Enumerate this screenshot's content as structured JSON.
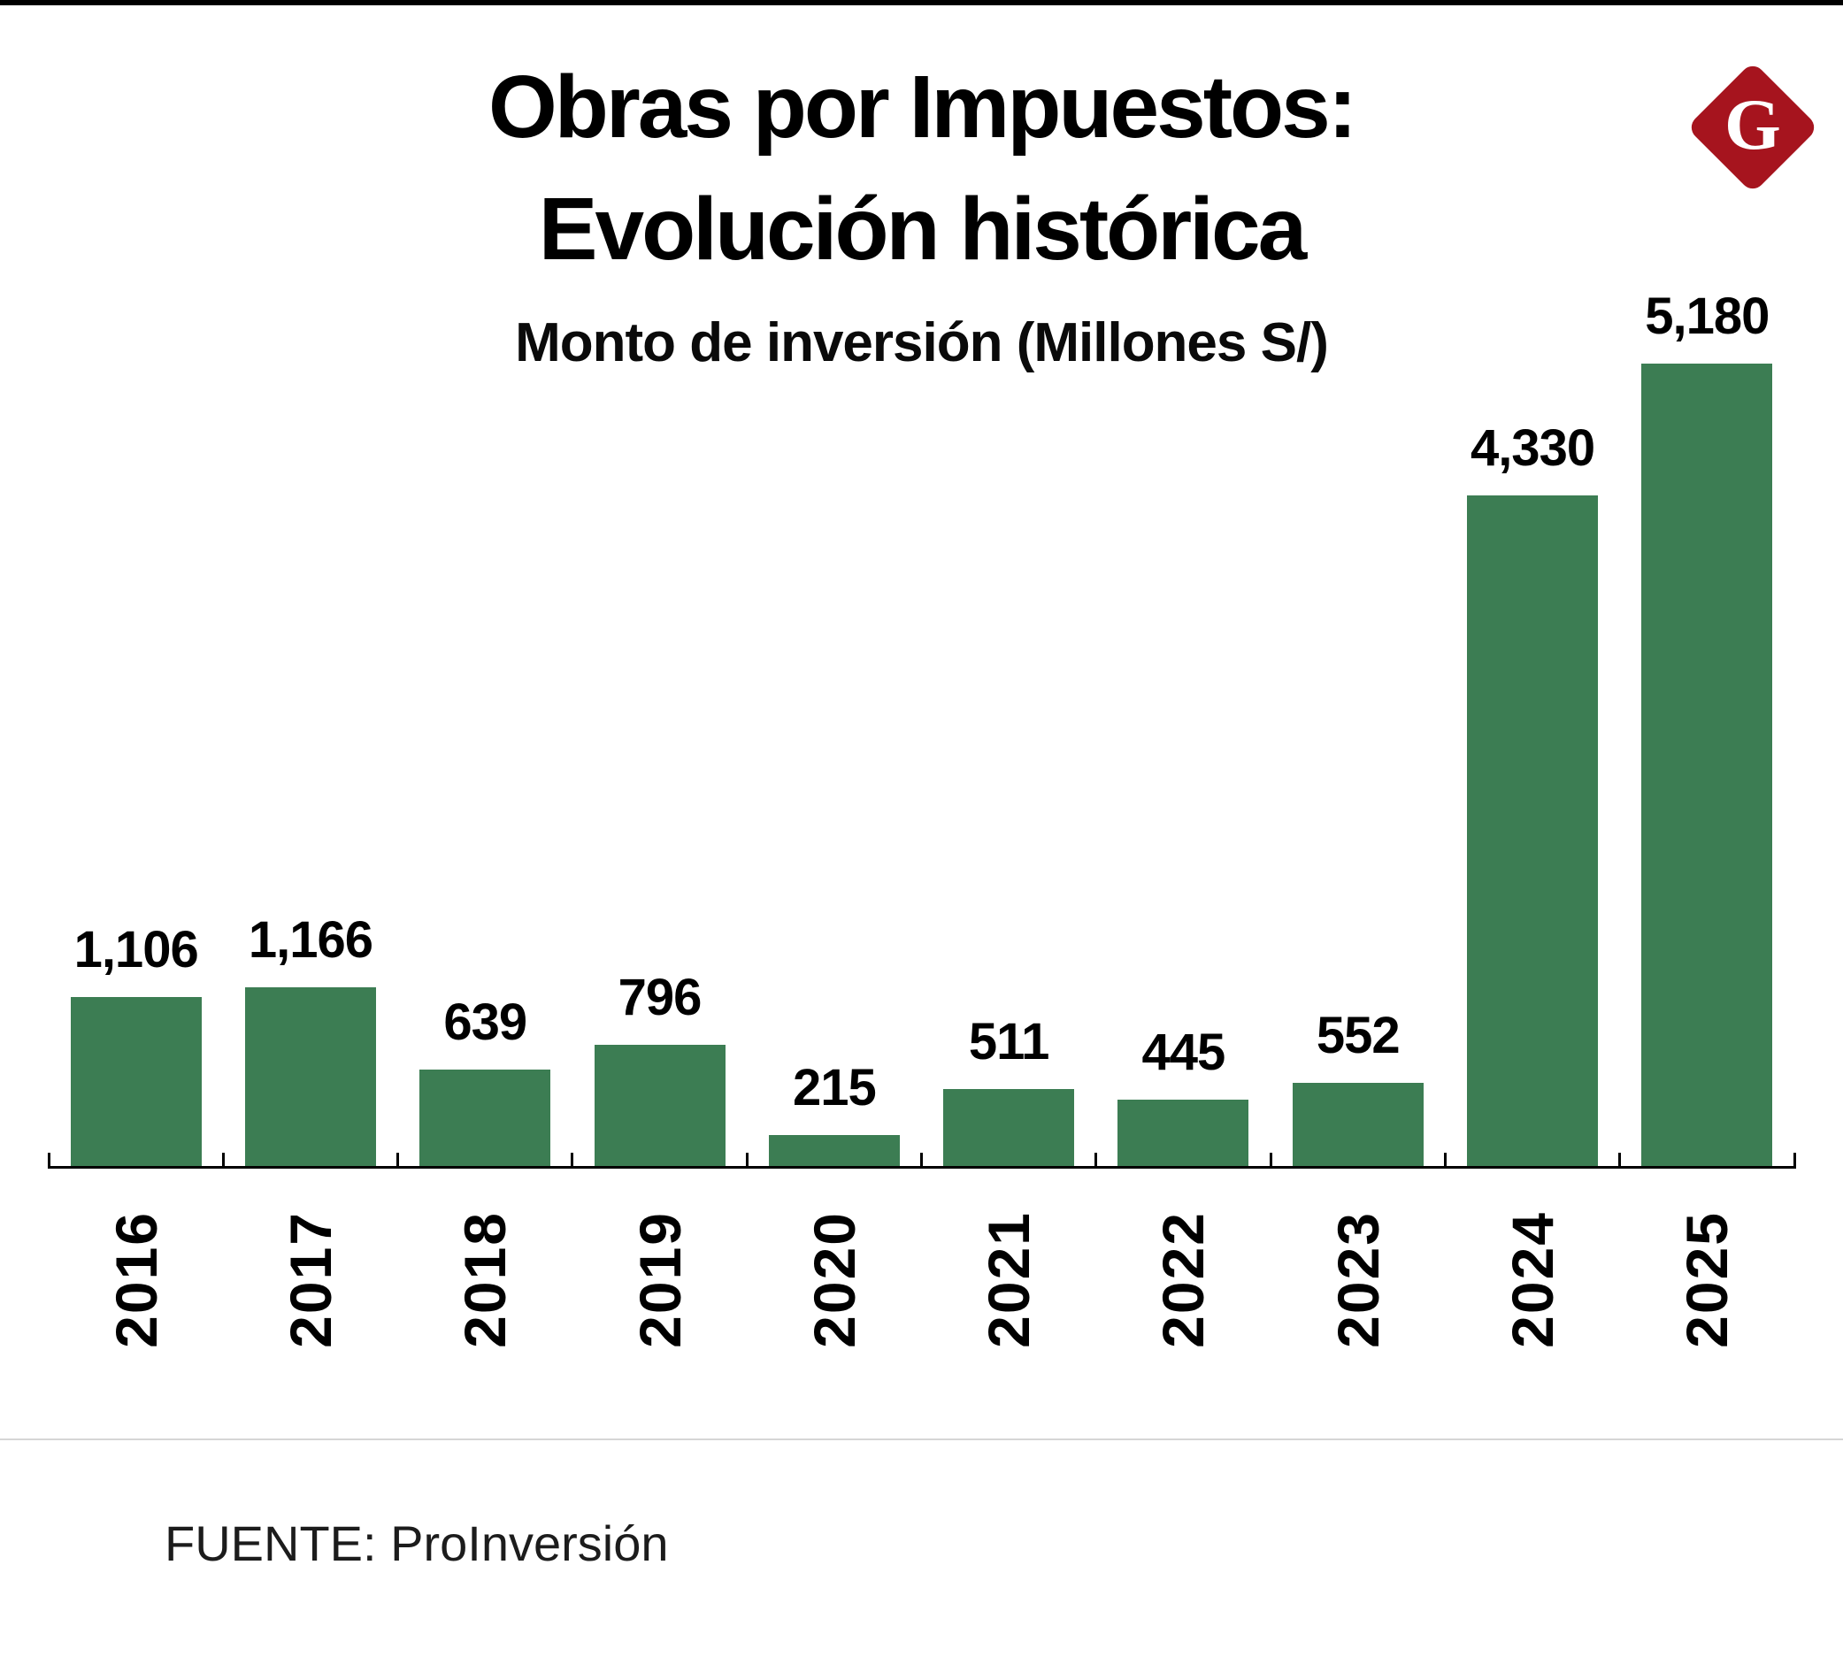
{
  "header": {
    "title_line1": "Obras por Impuestos:",
    "title_line2": "Evolución histórica",
    "subtitle": "Monto de inversión (Millones S/)"
  },
  "logo": {
    "letter": "G",
    "bg_color": "#A6141E",
    "text_color": "#ffffff"
  },
  "chart_data": {
    "type": "bar",
    "title": "Obras por Impuestos: Evolución histórica",
    "subtitle": "Monto de inversión (Millones S/)",
    "categories": [
      "2016",
      "2017",
      "2018",
      "2019",
      "2020",
      "2021",
      "2022",
      "2023",
      "2024",
      "2025"
    ],
    "values": [
      1106,
      1166,
      639,
      796,
      215,
      511,
      445,
      552,
      4330,
      5180
    ],
    "value_labels": [
      "1,106",
      "1,166",
      "639",
      "796",
      "215",
      "511",
      "445",
      "552",
      "4,330",
      "5,180"
    ],
    "bar_color": "#3C7D53",
    "xlabel": "",
    "ylabel": "",
    "ylim": [
      0,
      5180
    ],
    "grid": false,
    "legend": "none",
    "x_tick_rotation": 90,
    "value_label_position": "above-bar"
  },
  "footer": {
    "source": "FUENTE: ProInversión"
  }
}
